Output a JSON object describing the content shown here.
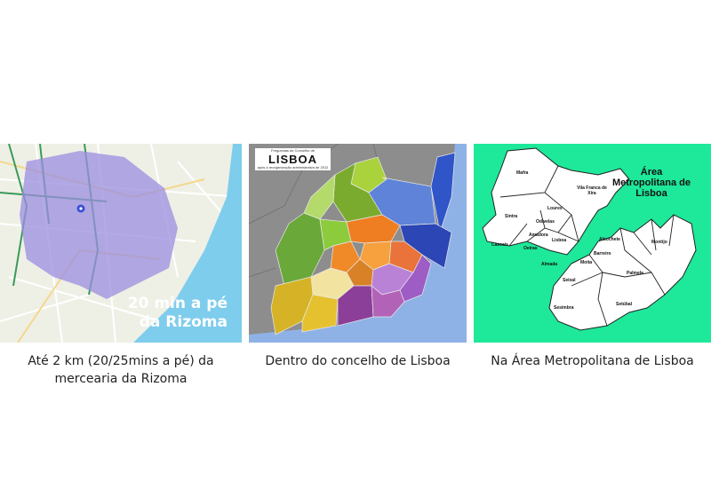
{
  "panels": {
    "walk": {
      "overlay_line1": "20 min a pé",
      "overlay_line2": "da Rizoma",
      "caption_line1": "Até 2 km (20/25mins a pé) da",
      "caption_line2": "mercearia da Rizoma"
    },
    "lisboa": {
      "title_small": "Freguesias do Concelho de",
      "title_big": "LISBOA",
      "title_sub": "após a reorganização administrativa de 2012",
      "caption": "Dentro do concelho de Lisboa"
    },
    "aml": {
      "title": "Área Metropolitana de Lisboa",
      "labels": {
        "mafra": "Mafra",
        "vila_franca": "Vila Franca de Xira",
        "loures": "Loures",
        "sintra": "Sintra",
        "odivelas": "Odivelas",
        "amadora": "Amadora",
        "lisboa": "Lisboa",
        "cascais": "Cascais",
        "oeiras": "Oeiras",
        "alcochete": "Alcochete",
        "montijo": "Montijo",
        "almada": "Almada",
        "moita": "Moita",
        "barreiro": "Barreiro",
        "seixal": "Seixal",
        "palmela": "Palmela",
        "sesimbra": "Sesimbra",
        "setubal": "Setúbal"
      },
      "caption": "Na Área Metropolitana de Lisboa"
    }
  },
  "colors": {
    "walk_area": "#9b8de0",
    "river": "#7fcdec",
    "aml_bg": "#1ee89a"
  }
}
